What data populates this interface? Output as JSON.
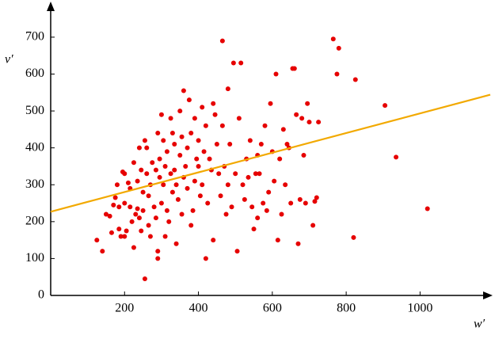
{
  "chart_data": {
    "type": "scatter",
    "x_label": "w′",
    "y_label": "v′",
    "xlim": [
      0,
      1190
    ],
    "ylim": [
      0,
      790
    ],
    "xticks": [
      200,
      400,
      600,
      800,
      1000
    ],
    "yticks": [
      0,
      100,
      200,
      300,
      400,
      500,
      600,
      700
    ],
    "color": "#e60000",
    "x": [
      125,
      140,
      150,
      160,
      165,
      170,
      175,
      180,
      185,
      185,
      190,
      195,
      200,
      200,
      205,
      200,
      210,
      215,
      215,
      220,
      225,
      225,
      230,
      235,
      235,
      240,
      240,
      245,
      245,
      250,
      250,
      255,
      255,
      260,
      260,
      265,
      265,
      270,
      270,
      275,
      280,
      285,
      285,
      290,
      290,
      290,
      295,
      295,
      300,
      300,
      305,
      305,
      310,
      310,
      315,
      315,
      320,
      325,
      325,
      330,
      330,
      335,
      335,
      340,
      340,
      345,
      350,
      350,
      355,
      355,
      360,
      360,
      365,
      370,
      370,
      375,
      380,
      380,
      385,
      390,
      390,
      395,
      400,
      400,
      405,
      410,
      410,
      415,
      420,
      420,
      425,
      430,
      435,
      440,
      440,
      445,
      450,
      455,
      460,
      465,
      465,
      470,
      475,
      480,
      480,
      485,
      490,
      495,
      500,
      505,
      510,
      515,
      520,
      525,
      530,
      535,
      540,
      545,
      550,
      555,
      560,
      560,
      565,
      570,
      575,
      580,
      585,
      590,
      595,
      600,
      605,
      610,
      615,
      620,
      625,
      630,
      635,
      640,
      645,
      650,
      655,
      660,
      665,
      670,
      675,
      680,
      685,
      690,
      695,
      700,
      710,
      715,
      720,
      725,
      765,
      775,
      780,
      820,
      825,
      905,
      935,
      1020
    ],
    "y": [
      150,
      120,
      220,
      215,
      170,
      245,
      265,
      300,
      240,
      180,
      160,
      335,
      330,
      250,
      175,
      160,
      305,
      240,
      290,
      200,
      130,
      360,
      220,
      235,
      310,
      210,
      400,
      340,
      175,
      280,
      230,
      45,
      420,
      330,
      400,
      270,
      190,
      300,
      160,
      360,
      240,
      210,
      340,
      440,
      100,
      120,
      320,
      370,
      250,
      490,
      420,
      300,
      350,
      160,
      390,
      230,
      200,
      330,
      480,
      440,
      280,
      340,
      410,
      140,
      300,
      260,
      380,
      500,
      430,
      220,
      555,
      320,
      350,
      400,
      290,
      530,
      190,
      440,
      230,
      310,
      480,
      370,
      420,
      350,
      270,
      510,
      300,
      390,
      100,
      460,
      250,
      370,
      340,
      520,
      150,
      490,
      410,
      330,
      270,
      690,
      460,
      350,
      220,
      300,
      560,
      410,
      240,
      630,
      330,
      120,
      480,
      630,
      300,
      260,
      370,
      320,
      420,
      240,
      180,
      330,
      210,
      380,
      330,
      410,
      250,
      460,
      230,
      280,
      520,
      390,
      310,
      600,
      150,
      370,
      220,
      450,
      300,
      410,
      400,
      250,
      615,
      615,
      490,
      140,
      260,
      480,
      380,
      250,
      520,
      470,
      190,
      255,
      265,
      470,
      695,
      600,
      670,
      157,
      585,
      515,
      375,
      235
    ],
    "fit_line": {
      "color": "#f2a900",
      "x": [
        0,
        1190
      ],
      "y": [
        227,
        544
      ]
    }
  }
}
